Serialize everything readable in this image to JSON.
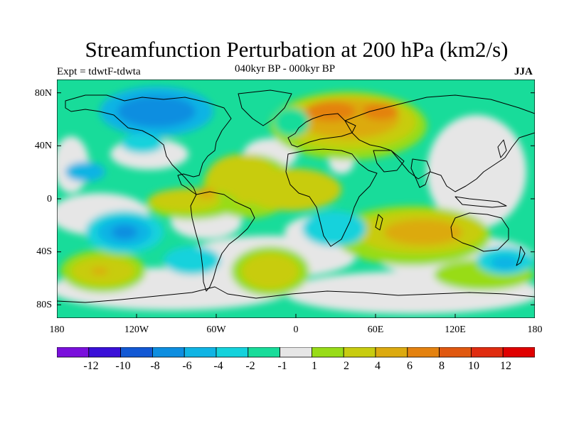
{
  "title": "Streamfunction Perturbation at 200 hPa (km2/s)",
  "experiment": "Expt = tdwtF-tdwta",
  "period": "040kyr BP - 000kyr BP",
  "season": "JJA",
  "lat_labels": [
    "80N",
    "40N",
    "0",
    "40S",
    "80S"
  ],
  "lon_labels": [
    "180",
    "120W",
    "60W",
    "0",
    "60E",
    "120E",
    "180"
  ],
  "colorbar": {
    "labels": [
      "-12",
      "-10",
      "-8",
      "-6",
      "-4",
      "-2",
      "-1",
      "1",
      "2",
      "4",
      "6",
      "8",
      "10",
      "12"
    ],
    "colors": [
      "#7a10dc",
      "#3a10d8",
      "#1258d4",
      "#0e8ee0",
      "#10b4e4",
      "#14d2dc",
      "#18dc9a",
      "#e6e6e6",
      "#98dc18",
      "#c8cc10",
      "#dcaa10",
      "#e48210",
      "#e05810",
      "#e02c10",
      "#e00000"
    ]
  },
  "colors": {
    "neutral": "#e6e6e6",
    "land_outline": "#000000"
  }
}
